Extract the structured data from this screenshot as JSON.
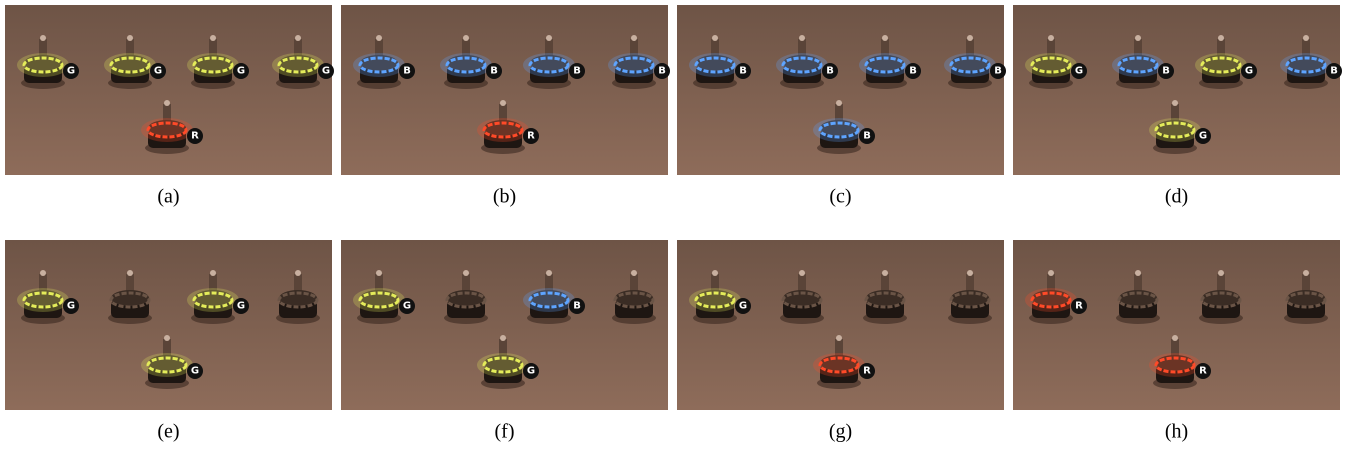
{
  "panels": [
    {
      "caption": "(a)",
      "robots": [
        {
          "label": "G",
          "color": "#e4ec5a"
        },
        {
          "label": "G",
          "color": "#e4ec5a"
        },
        {
          "label": "G",
          "color": "#e4ec5a"
        },
        {
          "label": "G",
          "color": "#e4ec5a"
        },
        {
          "label": "R",
          "color": "#ff4a28"
        }
      ]
    },
    {
      "caption": "(b)",
      "robots": [
        {
          "label": "B",
          "color": "#5ea4ff"
        },
        {
          "label": "B",
          "color": "#5ea4ff"
        },
        {
          "label": "B",
          "color": "#5ea4ff"
        },
        {
          "label": "B",
          "color": "#5ea4ff"
        },
        {
          "label": "R",
          "color": "#ff4a28"
        }
      ]
    },
    {
      "caption": "(c)",
      "robots": [
        {
          "label": "B",
          "color": "#5ea4ff"
        },
        {
          "label": "B",
          "color": "#5ea4ff"
        },
        {
          "label": "B",
          "color": "#5ea4ff"
        },
        {
          "label": "B",
          "color": "#5ea4ff"
        },
        {
          "label": "B",
          "color": "#5ea4ff"
        }
      ]
    },
    {
      "caption": "(d)",
      "robots": [
        {
          "label": "G",
          "color": "#e4ec5a"
        },
        {
          "label": "B",
          "color": "#5ea4ff"
        },
        {
          "label": "G",
          "color": "#e4ec5a"
        },
        {
          "label": "B",
          "color": "#5ea4ff"
        },
        {
          "label": "G",
          "color": "#e4ec5a"
        }
      ]
    },
    {
      "caption": "(e)",
      "robots": [
        {
          "label": "G",
          "color": "#e4ec5a"
        },
        {
          "label": null,
          "color": null
        },
        {
          "label": "G",
          "color": "#e4ec5a"
        },
        {
          "label": null,
          "color": null
        },
        {
          "label": "G",
          "color": "#e4ec5a"
        }
      ]
    },
    {
      "caption": "(f)",
      "robots": [
        {
          "label": "G",
          "color": "#e4ec5a"
        },
        {
          "label": null,
          "color": null
        },
        {
          "label": "B",
          "color": "#5ea4ff"
        },
        {
          "label": null,
          "color": null
        },
        {
          "label": "G",
          "color": "#e4ec5a"
        }
      ]
    },
    {
      "caption": "(g)",
      "robots": [
        {
          "label": "G",
          "color": "#e4ec5a"
        },
        {
          "label": null,
          "color": null
        },
        {
          "label": null,
          "color": null
        },
        {
          "label": null,
          "color": null
        },
        {
          "label": "R",
          "color": "#ff4a28"
        }
      ]
    },
    {
      "caption": "(h)",
      "robots": [
        {
          "label": "R",
          "color": "#ff4a28"
        },
        {
          "label": null,
          "color": null
        },
        {
          "label": null,
          "color": null
        },
        {
          "label": null,
          "color": null
        },
        {
          "label": "R",
          "color": "#ff4a28"
        }
      ]
    }
  ]
}
